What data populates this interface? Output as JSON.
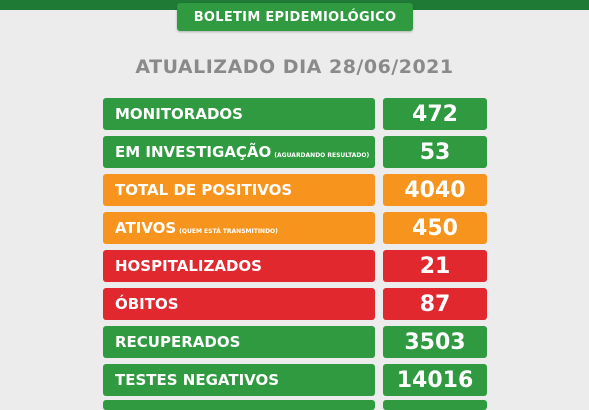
{
  "header": {
    "title": "BOLETIM EPIDEMIOLÓGICO"
  },
  "updated": "ATUALIZADO DIA 28/06/2021",
  "colors": {
    "green": "#2f9a3f",
    "orange": "#f7941d",
    "red": "#e0282e"
  },
  "rows": [
    {
      "label": "MONITORADOS",
      "sub": "",
      "value": "472",
      "color": "green"
    },
    {
      "label": "EM INVESTIGAÇÃO",
      "sub": "(AGUARDANDO RESULTADO)",
      "value": "53",
      "color": "green"
    },
    {
      "label": "TOTAL DE POSITIVOS",
      "sub": "",
      "value": "4040",
      "color": "orange"
    },
    {
      "label": "ATIVOS",
      "sub": "(QUEM ESTÁ TRANSMITINDO)",
      "value": "450",
      "color": "orange"
    },
    {
      "label": "HOSPITALIZADOS",
      "sub": "",
      "value": "21",
      "color": "red"
    },
    {
      "label": "ÓBITOS",
      "sub": "",
      "value": "87",
      "color": "red"
    },
    {
      "label": "RECUPERADOS",
      "sub": "",
      "value": "3503",
      "color": "green"
    },
    {
      "label": "TESTES NEGATIVOS",
      "sub": "",
      "value": "14016",
      "color": "green"
    }
  ]
}
